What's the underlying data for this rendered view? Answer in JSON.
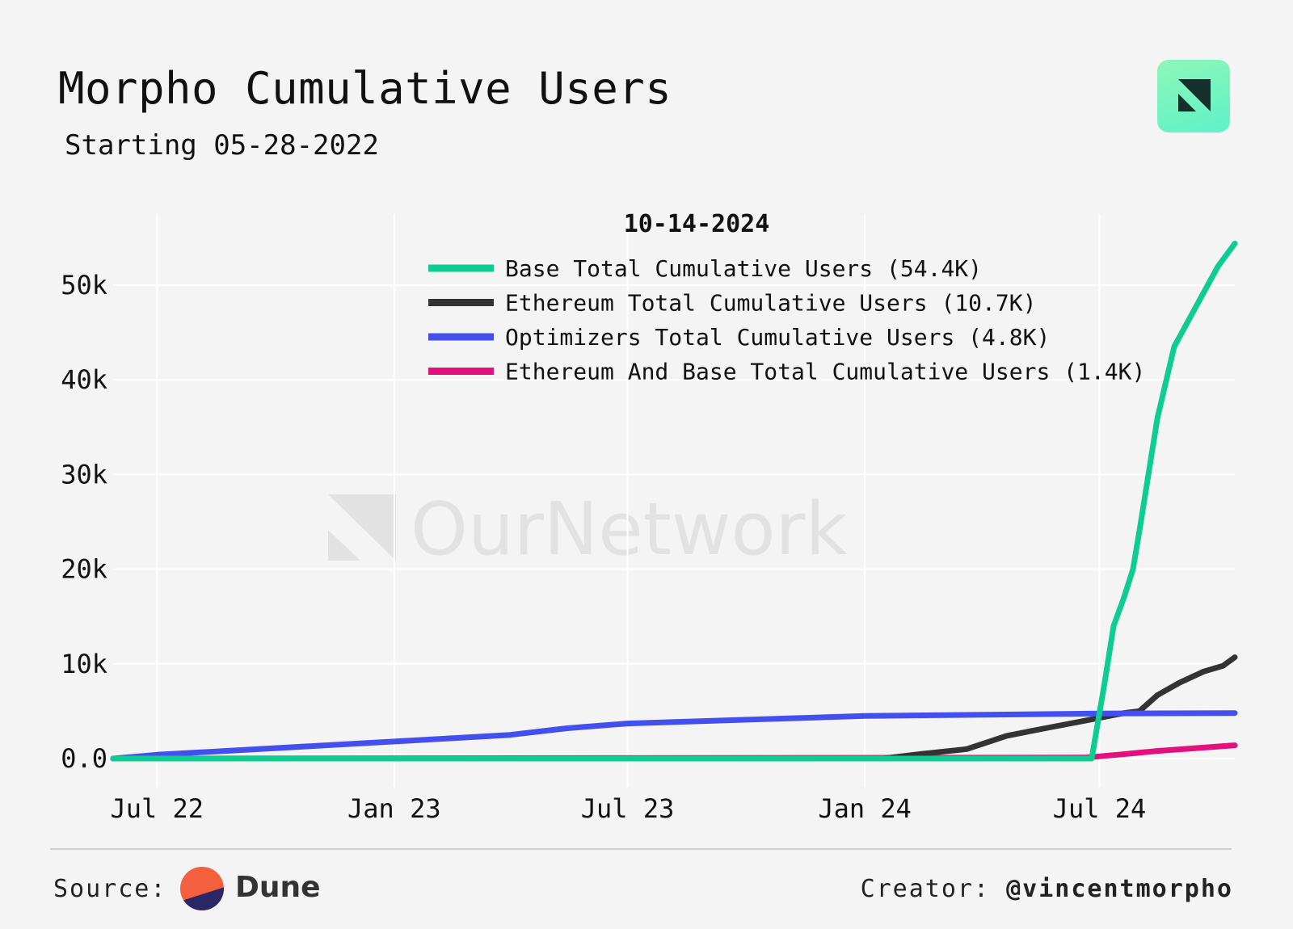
{
  "chart_data": {
    "type": "line",
    "title": "Morpho Cumulative Users",
    "subtitle": "Starting 05-28-2022",
    "legend_title": "10-14-2024",
    "legend_position": "top-right",
    "grid": true,
    "watermark": "OurNetwork",
    "x_range": [
      "2022-05-28",
      "2024-10-14"
    ],
    "x_ticks": [
      {
        "label": "Jul 22",
        "date": "2022-07-01"
      },
      {
        "label": "Jan 23",
        "date": "2023-01-01"
      },
      {
        "label": "Jul 23",
        "date": "2023-07-01"
      },
      {
        "label": "Jan 24",
        "date": "2024-01-01"
      },
      {
        "label": "Jul 24",
        "date": "2024-07-01"
      }
    ],
    "ylim": [
      -3000,
      57000
    ],
    "y_ticks": [
      {
        "label": "0.0",
        "value": 0
      },
      {
        "label": "10k",
        "value": 10000
      },
      {
        "label": "20k",
        "value": 20000
      },
      {
        "label": "30k",
        "value": 30000
      },
      {
        "label": "40k",
        "value": 40000
      },
      {
        "label": "50k",
        "value": 50000
      }
    ],
    "series": [
      {
        "name": "Base Total Cumulative Users (54.4K)",
        "color": "#0fcc92",
        "points": [
          [
            "2022-05-28",
            0
          ],
          [
            "2024-06-25",
            0
          ],
          [
            "2024-07-05",
            8000
          ],
          [
            "2024-07-12",
            14000
          ],
          [
            "2024-07-20",
            17000
          ],
          [
            "2024-07-27",
            20000
          ],
          [
            "2024-08-01",
            24000
          ],
          [
            "2024-08-15",
            36000
          ],
          [
            "2024-08-28",
            43500
          ],
          [
            "2024-09-15",
            48000
          ],
          [
            "2024-10-01",
            52000
          ],
          [
            "2024-10-14",
            54400
          ]
        ]
      },
      {
        "name": "Ethereum Total Cumulative Users (10.7K)",
        "color": "#333333",
        "points": [
          [
            "2022-05-28",
            0
          ],
          [
            "2024-01-15",
            0
          ],
          [
            "2024-02-15",
            500
          ],
          [
            "2024-03-20",
            1000
          ],
          [
            "2024-04-20",
            2400
          ],
          [
            "2024-05-20",
            3200
          ],
          [
            "2024-06-20",
            4000
          ],
          [
            "2024-07-20",
            4800
          ],
          [
            "2024-08-01",
            5000
          ],
          [
            "2024-08-15",
            6700
          ],
          [
            "2024-09-01",
            8000
          ],
          [
            "2024-09-20",
            9200
          ],
          [
            "2024-10-05",
            9800
          ],
          [
            "2024-10-14",
            10700
          ]
        ]
      },
      {
        "name": "Optimizers Total Cumulative Users (4.8K)",
        "color": "#4350ee",
        "points": [
          [
            "2022-05-28",
            0
          ],
          [
            "2022-07-01",
            400
          ],
          [
            "2023-01-01",
            1800
          ],
          [
            "2023-04-01",
            2500
          ],
          [
            "2023-05-15",
            3200
          ],
          [
            "2023-07-01",
            3700
          ],
          [
            "2024-01-01",
            4500
          ],
          [
            "2024-07-01",
            4750
          ],
          [
            "2024-10-14",
            4800
          ]
        ]
      },
      {
        "name": "Ethereum And Base Total Cumulative Users (1.4K)",
        "color": "#e3117e",
        "points": [
          [
            "2022-05-28",
            0
          ],
          [
            "2024-06-20",
            100
          ],
          [
            "2024-07-15",
            400
          ],
          [
            "2024-08-15",
            800
          ],
          [
            "2024-10-14",
            1400
          ]
        ]
      }
    ]
  },
  "footer": {
    "source_label": "Source:",
    "source_name": "Dune",
    "creator_label": "Creator:",
    "creator_handle": "@vincentmorpho"
  }
}
